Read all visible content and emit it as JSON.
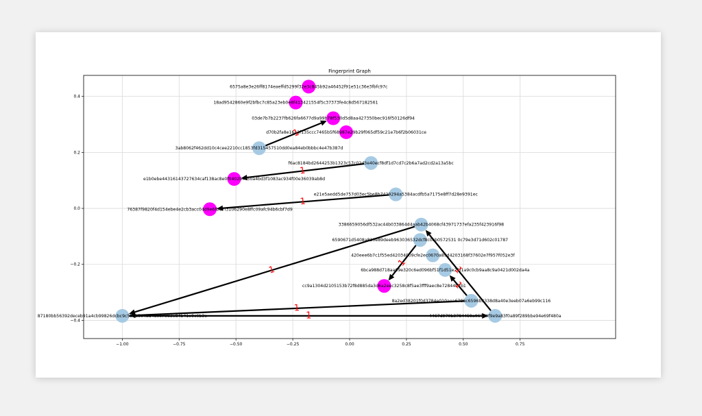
{
  "colors": {
    "primary_node": "#a6cae3",
    "secondary_node": "#ff00ff",
    "edge": "#000000",
    "edge_label": "#ff0000",
    "grid": "#d9d9d9"
  },
  "chart_data": {
    "type": "network",
    "title": "Fingerprint Graph",
    "xlim": [
      -1.17,
      1.17
    ],
    "ylim": [
      -0.465,
      0.475
    ],
    "grid": true,
    "x_ticks": [
      {
        "value": -1.0,
        "label": "−1.00"
      },
      {
        "value": -0.75,
        "label": "−0.75"
      },
      {
        "value": -0.5,
        "label": "−0.50"
      },
      {
        "value": -0.25,
        "label": "−0.25"
      },
      {
        "value": 0.0,
        "label": "0.00"
      },
      {
        "value": 0.25,
        "label": "0.25"
      },
      {
        "value": 0.5,
        "label": "0.50"
      },
      {
        "value": 0.75,
        "label": "0.75"
      }
    ],
    "y_ticks": [
      {
        "value": -0.4,
        "label": "−0.4"
      },
      {
        "value": -0.2,
        "label": "−0.2"
      },
      {
        "value": 0.0,
        "label": "0.0"
      },
      {
        "value": 0.2,
        "label": "0.2"
      },
      {
        "value": 0.4,
        "label": "0.4"
      }
    ],
    "nodes": [
      {
        "id": "n1",
        "label": "6575a8e3e26ff8174eaeffd5299f32e3c845b92a46452f91e51c36e3fbfc97c",
        "x": -0.18,
        "y": 0.435,
        "color": "secondary"
      },
      {
        "id": "n2",
        "label": "18ad9542860e9f2bfbc7c85a23eb0e8f413421554f5c37373fe4c8d567182561",
        "x": -0.237,
        "y": 0.378,
        "color": "secondary"
      },
      {
        "id": "n3",
        "label": "03de7b7b2237fb626fa6677d9a99b78f530d5d8aa427350bec916f50126df94",
        "x": -0.072,
        "y": 0.322,
        "color": "secondary"
      },
      {
        "id": "n4",
        "label": "d70b2fa8e16a2f135ccc7465b5f68987e29b29f065df59c21e7b6f2b06031ce",
        "x": -0.015,
        "y": 0.272,
        "color": "secondary"
      },
      {
        "id": "n5",
        "label": "3ab8062f462dd10c4cee2210cc1853fd315457510dd0ea84eb0bbbc4e47b387d",
        "x": -0.398,
        "y": 0.215,
        "color": "primary"
      },
      {
        "id": "n6",
        "label": "f6ac8184bd2644253b1323c57c02d3e40ecf8df1d7cd7c2b6a7ad2cd2a13a5bc",
        "x": 0.094,
        "y": 0.162,
        "color": "primary"
      },
      {
        "id": "n7",
        "label": "e1b0ebe44316143727634caf138ac8e0f0402b4c50a4bd3f1083ac934f00e36039ab8d",
        "x": -0.508,
        "y": 0.105,
        "color": "secondary"
      },
      {
        "id": "n8",
        "label": "e21e5aedd5de757d03ec5be8b7429294a5384acdfb5a7175e8ff7d28e9391ec",
        "x": 0.203,
        "y": 0.05,
        "color": "primary"
      },
      {
        "id": "n9",
        "label": "76387f9820f4d154ebe4e2cb3acc04d9e6fb67f3106290e8ffc09afc94b6cbf7d9",
        "x": -0.615,
        "y": -0.003,
        "color": "secondary"
      },
      {
        "id": "n10",
        "label": "3386659056df532ac44b033864d4aab42b4068cf43971737efa235f423916f98",
        "x": 0.315,
        "y": -0.058,
        "color": "primary"
      },
      {
        "id": "n11",
        "label": "6590671d5408a810e89deeb963036532dcf8c0cb0572531 0c79e3d71d602c01787",
        "x": 0.31,
        "y": -0.113,
        "color": "primary"
      },
      {
        "id": "n12",
        "label": "420eee6b7c1f55ed42034009cfe2ec0670a89d4203168f37602e7f957f052e3f",
        "x": 0.366,
        "y": -0.168,
        "color": "primary"
      },
      {
        "id": "n13",
        "label": "6bca988d718aa69e320c6ed096bf51f1d51e25f1a9c0cb9aa8c9a0421d002da4a",
        "x": 0.42,
        "y": -0.22,
        "color": "primary"
      },
      {
        "id": "n14",
        "label": "cc9a1304d2105153b72f8d885da3d6a2eec3258c8f5ae3fff9aec8e72844b7b1",
        "x": 0.152,
        "y": -0.277,
        "color": "secondary"
      },
      {
        "id": "n15",
        "label": "8a2ed38201f0d3784e010aea6786c6596b3338d8a40e3eeb07a6eb99c116",
        "x": 0.535,
        "y": -0.33,
        "color": "primary"
      },
      {
        "id": "n16",
        "label": "87180bb56392deceb91a4cb99826dcbc9c5b4b3e4ad48ee7983e84b41e9c6b3e",
        "x": -1.0,
        "y": -0.384,
        "color": "primary"
      },
      {
        "id": "n17",
        "label": "4467d970b3784459a06760f9e9a83f0a89f289bbe94e69f480a",
        "x": 0.64,
        "y": -0.384,
        "color": "primary"
      }
    ],
    "edges": [
      {
        "from": "n5",
        "to": "n3",
        "label": "1"
      },
      {
        "from": "n6",
        "to": "n7",
        "label": "1"
      },
      {
        "from": "n8",
        "to": "n9",
        "label": "1"
      },
      {
        "from": "n10",
        "to": "n16",
        "label": "1"
      },
      {
        "from": "n11",
        "to": "n14",
        "label": "1"
      },
      {
        "from": "n17",
        "to": "n10",
        "label": "1"
      },
      {
        "from": "n15",
        "to": "n16",
        "label": "1"
      },
      {
        "from": "n16",
        "to": "n17",
        "label": "1"
      },
      {
        "from": "n15",
        "to": "n13",
        "label": "1"
      }
    ]
  }
}
